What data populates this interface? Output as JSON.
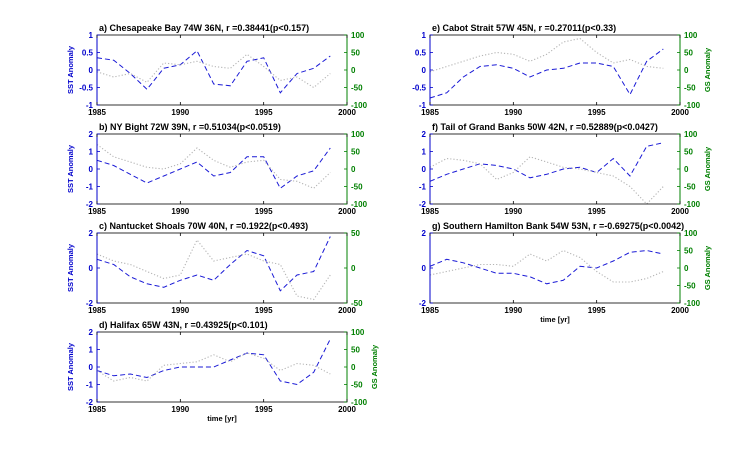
{
  "colors": {
    "sst": "#1a1ad6",
    "gs": "#b4b4b4",
    "left_axis": "#0000cc",
    "right_axis": "#008000",
    "frame": "#000000"
  },
  "chart_data": [
    {
      "id": "a",
      "type": "line",
      "title": "a) Chesapeake Bay  74W 36N, r =0.38441(p<0.157)",
      "xlim": [
        1985,
        2000
      ],
      "xticks": [
        1985,
        1990,
        1995,
        2000
      ],
      "ylim_left": [
        -1,
        1
      ],
      "yticks_left": [
        -1,
        -0.5,
        0,
        0.5,
        1
      ],
      "ylim_right": [
        -100,
        100
      ],
      "yticks_right": [
        -100,
        -50,
        0,
        50,
        100
      ],
      "ylabel_left": "SST Anomaly",
      "ylabel_right": "",
      "xlabel": "",
      "x": [
        1985,
        1986,
        1987,
        1988,
        1989,
        1990,
        1991,
        1992,
        1993,
        1994,
        1995,
        1996,
        1997,
        1998,
        1999
      ],
      "series": [
        {
          "axis": "left",
          "style": "dashed",
          "values": [
            0.35,
            0.28,
            -0.1,
            -0.55,
            0.05,
            0.15,
            0.55,
            -0.4,
            -0.45,
            0.25,
            0.35,
            -0.65,
            -0.1,
            0.05,
            0.4
          ]
        },
        {
          "axis": "right",
          "style": "dotted",
          "values": [
            -5,
            -20,
            -10,
            -35,
            20,
            15,
            25,
            10,
            5,
            45,
            10,
            -30,
            -20,
            -50,
            -10
          ]
        }
      ]
    },
    {
      "id": "b",
      "type": "line",
      "title": "b) NY Bight  72W 39N, r =0.51034(p<0.0519)",
      "xlim": [
        1985,
        2000
      ],
      "xticks": [
        1985,
        1990,
        1995,
        2000
      ],
      "ylim_left": [
        -2,
        2
      ],
      "yticks_left": [
        -2,
        -1,
        0,
        1,
        2
      ],
      "ylim_right": [
        -100,
        100
      ],
      "yticks_right": [
        -100,
        -50,
        0,
        50,
        100
      ],
      "ylabel_left": "SST Anomaly",
      "ylabel_right": "",
      "xlabel": "",
      "x": [
        1985,
        1986,
        1987,
        1988,
        1989,
        1990,
        1991,
        1992,
        1993,
        1994,
        1995,
        1996,
        1997,
        1998,
        1999
      ],
      "series": [
        {
          "axis": "left",
          "style": "dashed",
          "values": [
            0.5,
            0.2,
            -0.3,
            -0.8,
            -0.4,
            0,
            0.4,
            -0.4,
            -0.2,
            0.7,
            0.7,
            -1.1,
            -0.4,
            -0.1,
            1.2
          ]
        },
        {
          "axis": "right",
          "style": "dotted",
          "values": [
            70,
            35,
            20,
            5,
            0,
            15,
            60,
            25,
            5,
            20,
            25,
            -30,
            -35,
            -55,
            -10
          ]
        }
      ]
    },
    {
      "id": "c",
      "type": "line",
      "title": "c) Nantucket Shoals  70W 40N, r =0.1922(p<0.493)",
      "xlim": [
        1985,
        2000
      ],
      "xticks": [
        1985,
        1990,
        1995,
        2000
      ],
      "ylim_left": [
        -2,
        2
      ],
      "yticks_left": [
        -2,
        0,
        2
      ],
      "ylim_right": [
        -50,
        50
      ],
      "yticks_right": [
        -50,
        0,
        50
      ],
      "ylabel_left": "SST Anomaly",
      "ylabel_right": "",
      "xlabel": "",
      "x": [
        1985,
        1986,
        1987,
        1988,
        1989,
        1990,
        1991,
        1992,
        1993,
        1994,
        1995,
        1996,
        1997,
        1998,
        1999
      ],
      "series": [
        {
          "axis": "left",
          "style": "dashed",
          "values": [
            0.5,
            0.2,
            -0.5,
            -0.9,
            -1.1,
            -0.7,
            -0.4,
            -0.7,
            0.2,
            1.0,
            0.7,
            -1.3,
            -0.4,
            -0.2,
            1.8
          ]
        },
        {
          "axis": "right",
          "style": "dotted",
          "values": [
            20,
            10,
            5,
            -5,
            -15,
            -10,
            40,
            10,
            15,
            20,
            10,
            5,
            -40,
            -45,
            -10
          ]
        }
      ]
    },
    {
      "id": "d",
      "type": "line",
      "title": "d) Halifax  65W 43N, r =0.43925(p<0.101)",
      "xlim": [
        1985,
        2000
      ],
      "xticks": [
        1985,
        1990,
        1995,
        2000
      ],
      "ylim_left": [
        -2,
        2
      ],
      "yticks_left": [
        -2,
        -1,
        0,
        1,
        2
      ],
      "ylim_right": [
        -100,
        100
      ],
      "yticks_right": [
        -100,
        -50,
        0,
        50,
        100
      ],
      "ylabel_left": "SST Anomaly",
      "ylabel_right": "GS Anomaly",
      "xlabel": "time [yr]",
      "x": [
        1985,
        1986,
        1987,
        1988,
        1989,
        1990,
        1991,
        1992,
        1993,
        1994,
        1995,
        1996,
        1997,
        1998,
        1999
      ],
      "series": [
        {
          "axis": "left",
          "style": "dashed",
          "values": [
            -0.2,
            -0.5,
            -0.4,
            -0.6,
            -0.2,
            0,
            0,
            0,
            0.4,
            0.8,
            0.7,
            -0.8,
            -1.0,
            -0.3,
            1.6
          ]
        },
        {
          "axis": "right",
          "style": "dotted",
          "values": [
            -10,
            -40,
            -30,
            -40,
            5,
            10,
            15,
            35,
            15,
            40,
            25,
            -10,
            10,
            5,
            -20
          ]
        }
      ]
    },
    {
      "id": "e",
      "type": "line",
      "title": "e) Cabot Strait  57W 45N, r =0.27011(p<0.33)",
      "xlim": [
        1985,
        2000
      ],
      "xticks": [
        1985,
        1990,
        1995,
        2000
      ],
      "ylim_left": [
        -1,
        1
      ],
      "yticks_left": [
        -1,
        -0.5,
        0,
        0.5,
        1
      ],
      "ylim_right": [
        -100,
        100
      ],
      "yticks_right": [
        -100,
        -50,
        0,
        50,
        100
      ],
      "ylabel_left": "",
      "ylabel_right": "GS Anomaly",
      "xlabel": "",
      "x": [
        1985,
        1986,
        1987,
        1988,
        1989,
        1990,
        1991,
        1992,
        1993,
        1994,
        1995,
        1996,
        1997,
        1998,
        1999
      ],
      "series": [
        {
          "axis": "left",
          "style": "dashed",
          "values": [
            -0.8,
            -0.65,
            -0.2,
            0.1,
            0.15,
            0.05,
            -0.2,
            0.0,
            0.05,
            0.2,
            0.2,
            0.1,
            -0.7,
            0.25,
            0.6
          ]
        },
        {
          "axis": "right",
          "style": "dotted",
          "values": [
            -5,
            10,
            25,
            40,
            50,
            45,
            25,
            45,
            80,
            90,
            50,
            20,
            30,
            10,
            5
          ]
        }
      ]
    },
    {
      "id": "f",
      "type": "line",
      "title": "f) Tail of Grand Banks  50W 42N, r =0.52889(p<0.0427)",
      "xlim": [
        1985,
        2000
      ],
      "xticks": [
        1985,
        1990,
        1995,
        2000
      ],
      "ylim_left": [
        -2,
        2
      ],
      "yticks_left": [
        -2,
        -1,
        0,
        1,
        2
      ],
      "ylim_right": [
        -100,
        100
      ],
      "yticks_right": [
        -100,
        -50,
        0,
        50,
        100
      ],
      "ylabel_left": "",
      "ylabel_right": "GS Anomaly",
      "xlabel": "",
      "x": [
        1985,
        1986,
        1987,
        1988,
        1989,
        1990,
        1991,
        1992,
        1993,
        1994,
        1995,
        1996,
        1997,
        1998,
        1999
      ],
      "series": [
        {
          "axis": "left",
          "style": "dashed",
          "values": [
            -0.7,
            -0.3,
            0.0,
            0.3,
            0.2,
            0.0,
            -0.5,
            -0.3,
            0.0,
            0.1,
            -0.2,
            0.6,
            -0.4,
            1.3,
            1.5
          ]
        },
        {
          "axis": "right",
          "style": "dotted",
          "values": [
            5,
            30,
            25,
            15,
            -30,
            -10,
            35,
            20,
            5,
            0,
            -10,
            -20,
            -50,
            -100,
            -50
          ]
        }
      ]
    },
    {
      "id": "g",
      "type": "line",
      "title": "g) Southern Hamilton Bank  54W 53N, r =-0.69275(p<0.0042)",
      "xlim": [
        1985,
        2000
      ],
      "xticks": [
        1985,
        1990,
        1995,
        2000
      ],
      "ylim_left": [
        -2,
        2
      ],
      "yticks_left": [
        -2,
        0,
        2
      ],
      "ylim_right": [
        -100,
        100
      ],
      "yticks_right": [
        -100,
        -50,
        0,
        50,
        100
      ],
      "ylabel_left": "",
      "ylabel_right": "GS Anomaly",
      "xlabel": "time [yr]",
      "x": [
        1985,
        1986,
        1987,
        1988,
        1989,
        1990,
        1991,
        1992,
        1993,
        1994,
        1995,
        1996,
        1997,
        1998,
        1999
      ],
      "series": [
        {
          "axis": "left",
          "style": "dashed",
          "values": [
            0.1,
            0.5,
            0.3,
            0.0,
            -0.3,
            -0.3,
            -0.5,
            -0.9,
            -0.7,
            0.1,
            0.0,
            0.4,
            0.9,
            1.0,
            0.8
          ]
        },
        {
          "axis": "right",
          "style": "dotted",
          "values": [
            -20,
            -10,
            0,
            10,
            10,
            5,
            40,
            20,
            50,
            30,
            -10,
            -40,
            -40,
            -30,
            -10
          ]
        }
      ]
    }
  ]
}
